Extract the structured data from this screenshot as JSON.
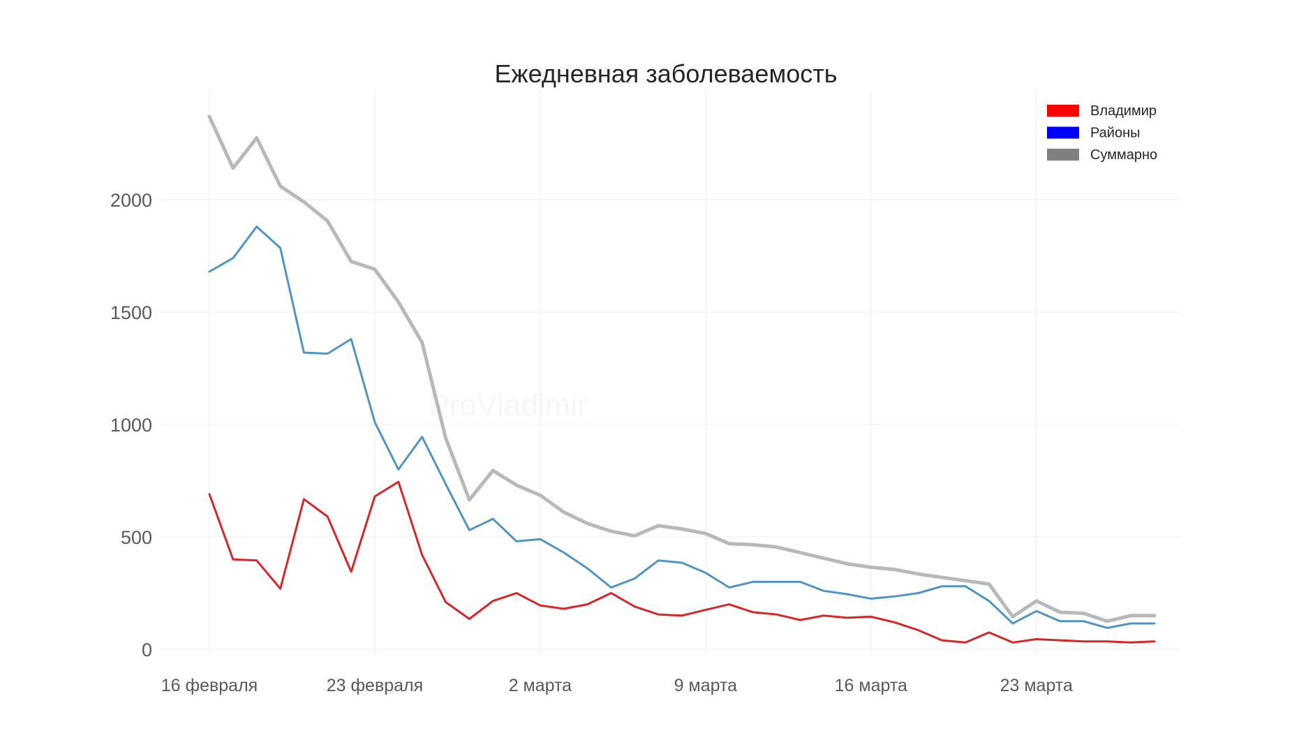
{
  "chart_data": {
    "type": "line",
    "title": "Ежедневная заболеваемость",
    "xlabel": "",
    "ylabel": "",
    "watermark": "ProVladimir",
    "x": [
      "16 февраля",
      "17 февраля",
      "18 февраля",
      "19 февраля",
      "20 февраля",
      "21 февраля",
      "22 февраля",
      "23 февраля",
      "24 февраля",
      "25 февраля",
      "26 февраля",
      "27 февраля",
      "28 февраля",
      "1 марта",
      "2 марта",
      "3 марта",
      "4 марта",
      "5 марта",
      "6 марта",
      "7 марта",
      "8 марта",
      "9 марта",
      "10 марта",
      "11 марта",
      "12 марта",
      "13 марта",
      "14 марта",
      "15 марта",
      "16 марта",
      "17 марта",
      "18 марта",
      "19 марта",
      "20 марта",
      "21 марта",
      "22 марта",
      "23 марта",
      "24 марта",
      "25 марта",
      "26 марта",
      "27 марта",
      "28 марта"
    ],
    "x_ticks": [
      "16 февраля",
      "23 февраля",
      "2 марта",
      "9 марта",
      "16 марта",
      "23 марта"
    ],
    "y_ticks": [
      0,
      500,
      1000,
      1500,
      2000
    ],
    "ylim": [
      -50,
      2420
    ],
    "grid": true,
    "legend_position": "top-right",
    "series": [
      {
        "name": "Владимир",
        "legend_color": "#ff0000",
        "line_color": "#d62728",
        "values": [
          690,
          400,
          395,
          270,
          668,
          590,
          345,
          680,
          745,
          420,
          210,
          135,
          215,
          250,
          195,
          180,
          200,
          250,
          190,
          155,
          150,
          175,
          200,
          165,
          155,
          130,
          150,
          140,
          145,
          120,
          85,
          40,
          30,
          75,
          30,
          45,
          40,
          35,
          35,
          30,
          35
        ]
      },
      {
        "name": "Районы",
        "legend_color": "#0000ff",
        "line_color": "#4f94c4",
        "values": [
          1680,
          1740,
          1880,
          1785,
          1320,
          1315,
          1380,
          1010,
          800,
          945,
          735,
          530,
          580,
          480,
          490,
          430,
          360,
          275,
          315,
          395,
          385,
          340,
          275,
          300,
          300,
          300,
          260,
          245,
          225,
          235,
          250,
          280,
          280,
          215,
          115,
          170,
          125,
          125,
          95,
          115,
          115
        ]
      },
      {
        "name": "Суммарно",
        "legend_color": "#808080",
        "line_color": "#b8b8b8",
        "values": [
          2370,
          2140,
          2275,
          2060,
          1990,
          1905,
          1725,
          1690,
          1545,
          1365,
          940,
          665,
          795,
          730,
          685,
          610,
          560,
          525,
          505,
          550,
          535,
          515,
          470,
          465,
          455,
          430,
          405,
          380,
          365,
          355,
          335,
          320,
          305,
          290,
          145,
          215,
          165,
          160,
          125,
          150,
          150
        ]
      }
    ]
  }
}
